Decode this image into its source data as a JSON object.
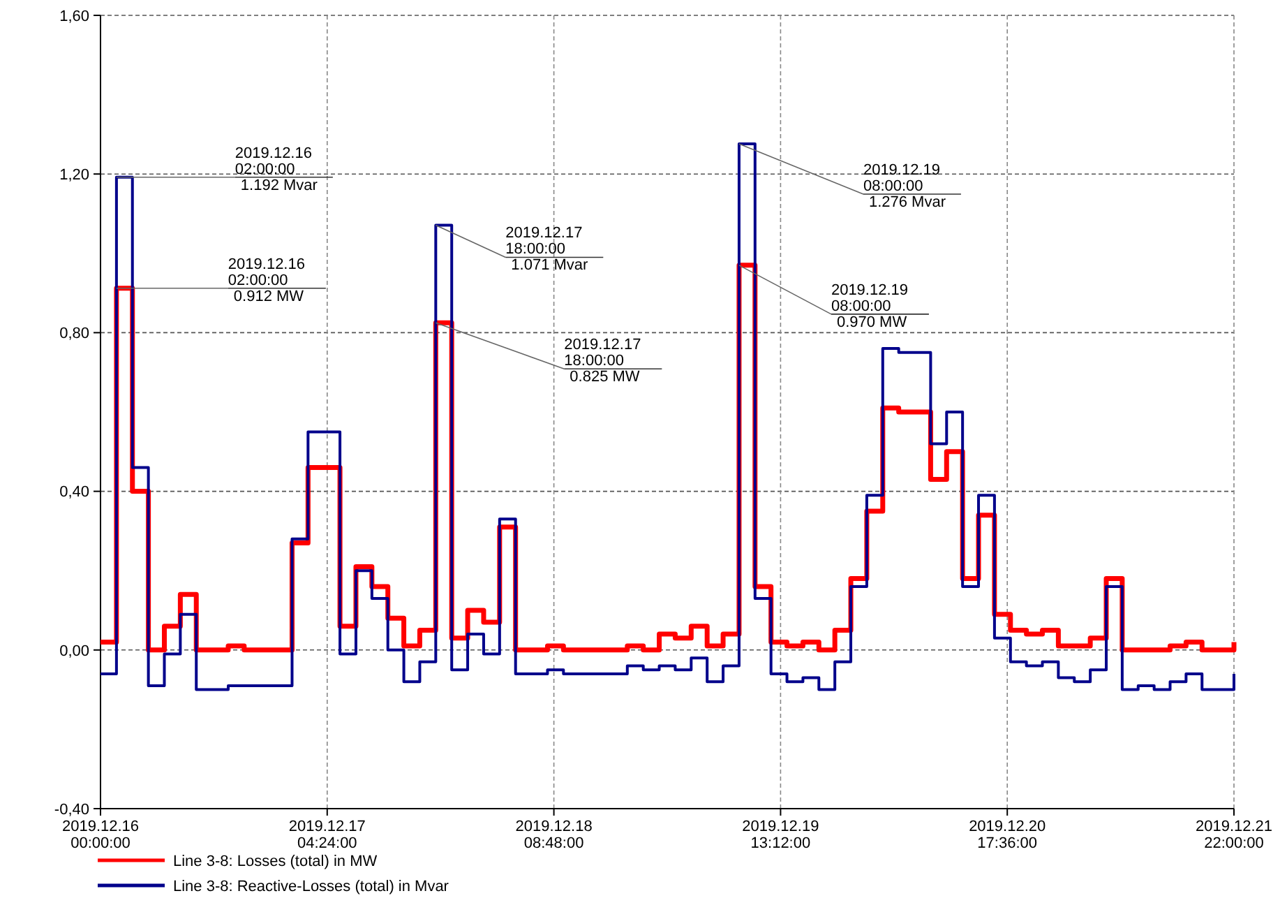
{
  "chart_data": {
    "type": "step",
    "x": [
      "2019-12-16T00:00",
      "2019-12-16T02:00",
      "2019-12-16T04:00",
      "2019-12-16T06:00",
      "2019-12-16T08:00",
      "2019-12-16T10:00",
      "2019-12-16T12:00",
      "2019-12-16T14:00",
      "2019-12-16T16:00",
      "2019-12-16T18:00",
      "2019-12-16T20:00",
      "2019-12-16T22:00",
      "2019-12-17T00:00",
      "2019-12-17T02:00",
      "2019-12-17T04:00",
      "2019-12-17T06:00",
      "2019-12-17T08:00",
      "2019-12-17T10:00",
      "2019-12-17T12:00",
      "2019-12-17T14:00",
      "2019-12-17T16:00",
      "2019-12-17T18:00",
      "2019-12-17T20:00",
      "2019-12-17T22:00",
      "2019-12-18T00:00",
      "2019-12-18T02:00",
      "2019-12-18T04:00",
      "2019-12-18T06:00",
      "2019-12-18T08:00",
      "2019-12-18T10:00",
      "2019-12-18T12:00",
      "2019-12-18T14:00",
      "2019-12-18T16:00",
      "2019-12-18T18:00",
      "2019-12-18T20:00",
      "2019-12-18T22:00",
      "2019-12-19T00:00",
      "2019-12-19T02:00",
      "2019-12-19T04:00",
      "2019-12-19T06:00",
      "2019-12-19T08:00",
      "2019-12-19T10:00",
      "2019-12-19T12:00",
      "2019-12-19T14:00",
      "2019-12-19T16:00",
      "2019-12-19T18:00",
      "2019-12-19T20:00",
      "2019-12-19T22:00",
      "2019-12-20T00:00",
      "2019-12-20T02:00",
      "2019-12-20T04:00",
      "2019-12-20T06:00",
      "2019-12-20T08:00",
      "2019-12-20T10:00",
      "2019-12-20T12:00",
      "2019-12-20T14:00",
      "2019-12-20T16:00",
      "2019-12-20T18:00",
      "2019-12-20T20:00",
      "2019-12-20T22:00",
      "2019-12-21T00:00",
      "2019-12-21T02:00",
      "2019-12-21T04:00",
      "2019-12-21T06:00",
      "2019-12-21T08:00",
      "2019-12-21T10:00",
      "2019-12-21T12:00",
      "2019-12-21T14:00",
      "2019-12-21T16:00",
      "2019-12-21T18:00",
      "2019-12-21T20:00",
      "2019-12-21T22:00"
    ],
    "series": [
      {
        "name": "Line 3-8: Losses (total) in MW",
        "color": "#ff0000",
        "values": [
          0.02,
          0.912,
          0.4,
          0.0,
          0.06,
          0.14,
          0.0,
          0.0,
          0.01,
          0.0,
          0.0,
          0.0,
          0.27,
          0.46,
          0.46,
          0.06,
          0.21,
          0.16,
          0.08,
          0.01,
          0.05,
          0.825,
          0.03,
          0.1,
          0.07,
          0.31,
          0.0,
          0.0,
          0.01,
          0.0,
          0.0,
          0.0,
          0.0,
          0.01,
          0.0,
          0.04,
          0.03,
          0.06,
          0.01,
          0.04,
          0.97,
          0.16,
          0.02,
          0.01,
          0.02,
          0.0,
          0.05,
          0.18,
          0.35,
          0.61,
          0.6,
          0.6,
          0.43,
          0.5,
          0.18,
          0.34,
          0.09,
          0.05,
          0.04,
          0.05,
          0.01,
          0.01,
          0.03,
          0.18,
          0.0,
          0.0,
          0.0,
          0.01,
          0.02,
          0.0,
          0.0,
          0.02
        ]
      },
      {
        "name": "Line 3-8: Reactive-Losses (total) in Mvar",
        "color": "#00008b",
        "values": [
          -0.06,
          1.192,
          0.46,
          -0.09,
          -0.01,
          0.09,
          -0.1,
          -0.1,
          -0.09,
          -0.09,
          -0.09,
          -0.09,
          0.28,
          0.55,
          0.55,
          -0.01,
          0.2,
          0.13,
          0.0,
          -0.08,
          -0.03,
          1.071,
          -0.05,
          0.04,
          -0.01,
          0.33,
          -0.06,
          -0.06,
          -0.05,
          -0.06,
          -0.06,
          -0.06,
          -0.06,
          -0.04,
          -0.05,
          -0.04,
          -0.05,
          -0.02,
          -0.08,
          -0.04,
          1.276,
          0.13,
          -0.06,
          -0.08,
          -0.07,
          -0.1,
          -0.03,
          0.16,
          0.39,
          0.76,
          0.75,
          0.75,
          0.52,
          0.6,
          0.16,
          0.39,
          0.03,
          -0.03,
          -0.04,
          -0.03,
          -0.07,
          -0.08,
          -0.05,
          0.16,
          -0.1,
          -0.09,
          -0.1,
          -0.08,
          -0.06,
          -0.1,
          -0.1,
          -0.06
        ]
      }
    ],
    "xlim": [
      "2019-12-16T00:00",
      "2019-12-21T22:00"
    ],
    "xticks": [
      {
        "value": "2019-12-16T00:00",
        "label": "2019.12.16\n00:00:00"
      },
      {
        "value": "2019-12-17T04:24",
        "label": "2019.12.17\n04:24:00"
      },
      {
        "value": "2019-12-18T08:48",
        "label": "2019.12.18\n08:48:00"
      },
      {
        "value": "2019-12-19T13:12",
        "label": "2019.12.19\n13:12:00"
      },
      {
        "value": "2019-12-20T17:36",
        "label": "2019.12.20\n17:36:00"
      },
      {
        "value": "2019-12-21T22:00",
        "label": "2019.12.21\n22:00:00"
      }
    ],
    "ylim": [
      -0.4,
      1.6
    ],
    "yticks": [
      {
        "value": -0.4,
        "label": "-0,40"
      },
      {
        "value": 0,
        "label": "0,00"
      },
      {
        "value": 0.4,
        "label": "0,40"
      },
      {
        "value": 0.8,
        "label": "0,80"
      },
      {
        "value": 1.2,
        "label": "1,20"
      },
      {
        "value": 1.6,
        "label": "1,60"
      }
    ],
    "grid": true,
    "legend": "bottom",
    "annotations": [
      {
        "text": "2019.12.16\n02:00:00\n1.192 Mvar",
        "x": "2019-12-16T02:00",
        "y": 1.192
      },
      {
        "text": "2019.12.16\n02:00:00\n0.912 MW",
        "x": "2019-12-16T02:00",
        "y": 0.912
      },
      {
        "text": "2019.12.17\n18:00:00\n1.071 Mvar",
        "x": "2019-12-17T18:00",
        "y": 1.071
      },
      {
        "text": "2019.12.17\n18:00:00\n0.825 MW",
        "x": "2019-12-17T18:00",
        "y": 0.825
      },
      {
        "text": "2019.12.19\n08:00:00\n1.276 Mvar",
        "x": "2019-12-19T08:00",
        "y": 1.276
      },
      {
        "text": "2019.12.19\n08:00:00\n0.970 MW",
        "x": "2019-12-19T08:00",
        "y": 0.97
      }
    ]
  }
}
